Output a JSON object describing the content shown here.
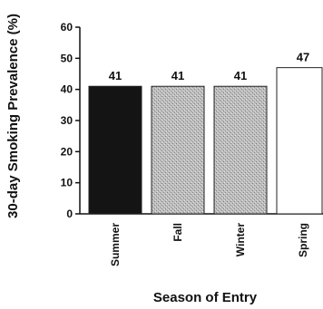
{
  "chart_data": {
    "type": "bar",
    "title": "",
    "xlabel": "Season of Entry",
    "ylabel": "30-day Smoking Prevalence (%)",
    "categories": [
      "Summer",
      "Fall",
      "Winter",
      "Spring"
    ],
    "values": [
      41,
      41,
      41,
      47
    ],
    "data_labels": [
      "41",
      "41",
      "41",
      "47"
    ],
    "ylim": [
      0,
      60
    ],
    "yticks": [
      "0",
      "10",
      "20",
      "30",
      "40",
      "50",
      "60"
    ],
    "grid": false,
    "legend": "none",
    "bar_colors": [
      "#141414",
      "#c4c4c4",
      "#b0b0b0",
      "#ffffff"
    ]
  }
}
